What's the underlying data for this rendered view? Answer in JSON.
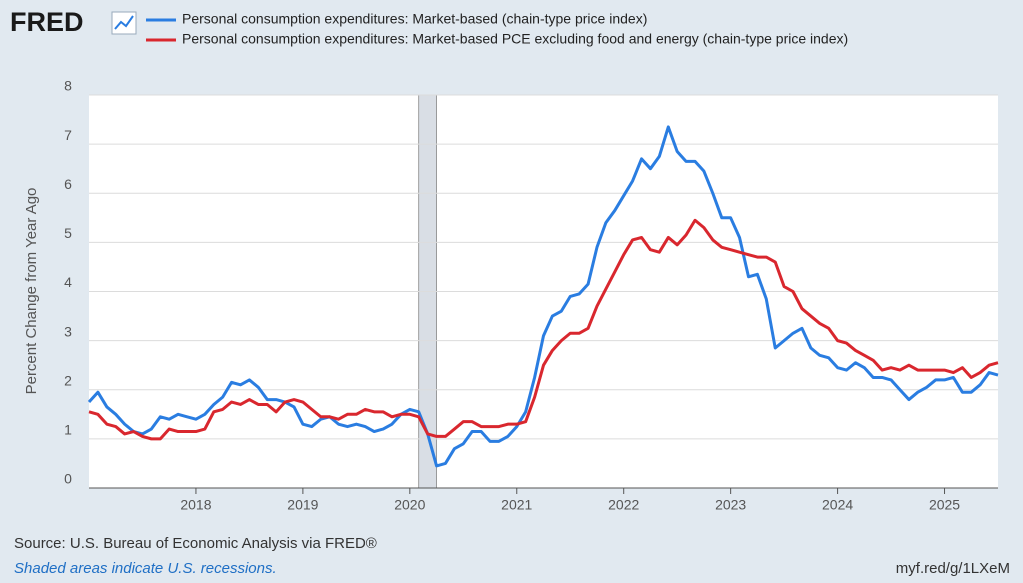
{
  "chart_data": {
    "type": "line",
    "logo": "FRED",
    "ylabel": "Percent Change from Year Ago",
    "source": "Source: U.S. Bureau of Economic Analysis via FRED®",
    "note": "Shaded areas indicate U.S. recessions.",
    "link": "myf.red/g/1LXeM",
    "xlim": [
      2017,
      2025.5
    ],
    "xticks": [
      2018,
      2019,
      2020,
      2021,
      2022,
      2023,
      2024,
      2025
    ],
    "ylim": [
      0,
      8
    ],
    "yticks": [
      0,
      1,
      2,
      3,
      4,
      5,
      6,
      7,
      8
    ],
    "grid": true,
    "recessions": [
      [
        2020.083,
        2020.25
      ]
    ],
    "x": [
      2017,
      2017.083,
      2017.167,
      2017.25,
      2017.333,
      2017.417,
      2017.5,
      2017.583,
      2017.667,
      2017.75,
      2017.833,
      2017.917,
      2018,
      2018.083,
      2018.167,
      2018.25,
      2018.333,
      2018.417,
      2018.5,
      2018.583,
      2018.667,
      2018.75,
      2018.833,
      2018.917,
      2019,
      2019.083,
      2019.167,
      2019.25,
      2019.333,
      2019.417,
      2019.5,
      2019.583,
      2019.667,
      2019.75,
      2019.833,
      2019.917,
      2020,
      2020.083,
      2020.167,
      2020.25,
      2020.333,
      2020.417,
      2020.5,
      2020.583,
      2020.667,
      2020.75,
      2020.833,
      2020.917,
      2021,
      2021.083,
      2021.167,
      2021.25,
      2021.333,
      2021.417,
      2021.5,
      2021.583,
      2021.667,
      2021.75,
      2021.833,
      2021.917,
      2022,
      2022.083,
      2022.167,
      2022.25,
      2022.333,
      2022.417,
      2022.5,
      2022.583,
      2022.667,
      2022.75,
      2022.833,
      2022.917,
      2023,
      2023.083,
      2023.167,
      2023.25,
      2023.333,
      2023.417,
      2023.5,
      2023.583,
      2023.667,
      2023.75,
      2023.833,
      2023.917,
      2024,
      2024.083,
      2024.167,
      2024.25,
      2024.333,
      2024.417,
      2024.5,
      2024.583,
      2024.667,
      2024.75,
      2024.833,
      2024.917,
      2025,
      2025.083,
      2025.167,
      2025.25,
      2025.333,
      2025.417,
      2025.5
    ],
    "series": [
      {
        "name": "Personal consumption expenditures: Market-based (chain-type price index)",
        "color": "#2a7de1",
        "values": [
          1.75,
          1.95,
          1.65,
          1.5,
          1.3,
          1.15,
          1.1,
          1.2,
          1.45,
          1.4,
          1.5,
          1.45,
          1.4,
          1.5,
          1.7,
          1.85,
          2.15,
          2.1,
          2.2,
          2.05,
          1.8,
          1.8,
          1.75,
          1.65,
          1.3,
          1.25,
          1.4,
          1.45,
          1.3,
          1.25,
          1.3,
          1.25,
          1.15,
          1.2,
          1.3,
          1.5,
          1.6,
          1.55,
          1.1,
          0.45,
          0.5,
          0.8,
          0.9,
          1.15,
          1.15,
          0.95,
          0.95,
          1.05,
          1.25,
          1.55,
          2.25,
          3.1,
          3.5,
          3.6,
          3.9,
          3.95,
          4.15,
          4.9,
          5.4,
          5.65,
          5.95,
          6.25,
          6.7,
          6.5,
          6.75,
          7.35,
          6.85,
          6.65,
          6.65,
          6.45,
          6.0,
          5.5,
          5.5,
          5.1,
          4.3,
          4.35,
          3.85,
          2.85,
          3.0,
          3.15,
          3.25,
          2.85,
          2.7,
          2.65,
          2.45,
          2.4,
          2.55,
          2.45,
          2.25,
          2.25,
          2.2,
          2.0,
          1.8,
          1.95,
          2.05,
          2.2,
          2.2,
          2.25,
          1.95,
          1.95,
          2.1,
          2.35,
          2.3
        ]
      },
      {
        "name": "Personal consumption expenditures: Market-based PCE excluding food and energy (chain-type price index)",
        "color": "#d9272e",
        "values": [
          1.55,
          1.5,
          1.3,
          1.25,
          1.1,
          1.15,
          1.05,
          1.0,
          1.0,
          1.2,
          1.15,
          1.15,
          1.15,
          1.2,
          1.55,
          1.6,
          1.75,
          1.7,
          1.8,
          1.7,
          1.7,
          1.55,
          1.75,
          1.8,
          1.75,
          1.6,
          1.45,
          1.45,
          1.4,
          1.5,
          1.5,
          1.6,
          1.55,
          1.55,
          1.45,
          1.5,
          1.5,
          1.45,
          1.1,
          1.05,
          1.05,
          1.2,
          1.35,
          1.35,
          1.25,
          1.25,
          1.25,
          1.3,
          1.3,
          1.35,
          1.85,
          2.5,
          2.8,
          3.0,
          3.15,
          3.15,
          3.25,
          3.7,
          4.05,
          4.4,
          4.75,
          5.05,
          5.1,
          4.85,
          4.8,
          5.1,
          4.95,
          5.15,
          5.45,
          5.3,
          5.05,
          4.9,
          4.85,
          4.8,
          4.75,
          4.7,
          4.7,
          4.6,
          4.1,
          4.0,
          3.65,
          3.5,
          3.35,
          3.25,
          3.0,
          2.95,
          2.8,
          2.7,
          2.6,
          2.4,
          2.45,
          2.4,
          2.5,
          2.4,
          2.4,
          2.4,
          2.4,
          2.35,
          2.45,
          2.25,
          2.35,
          2.5,
          2.55
        ]
      }
    ]
  }
}
